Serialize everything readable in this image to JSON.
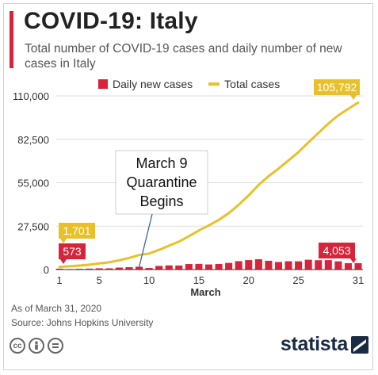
{
  "header": {
    "title": "COVID-19: Italy",
    "subtitle": "Total number of COVID-19 cases and daily number of new cases in Italy"
  },
  "legend": {
    "bars": "Daily new cases",
    "line": "Total cases"
  },
  "colors": {
    "accent": "#d8243a",
    "bars": "#d8243a",
    "line": "#e8c12a",
    "grid": "#dddddd",
    "brand": "#1a2b44"
  },
  "annotation": {
    "line1": "March 9",
    "line2": "Quarantine",
    "line3": "Begins",
    "day": 9
  },
  "callouts": {
    "total_start": "1,701",
    "daily_start": "573",
    "total_end": "105,792",
    "daily_end": "4,053"
  },
  "footer": {
    "as_of": "As of March 31, 2020",
    "source": "Source: Johns Hopkins University",
    "brand": "statista",
    "license_icons": [
      "cc-icon",
      "person-icon",
      "equal-icon"
    ]
  },
  "chart_data": {
    "type": "bar",
    "xlabel": "March",
    "ylabel": "",
    "ylim": [
      0,
      110000
    ],
    "yticks": [
      "0",
      "27,500",
      "55,000",
      "82,500",
      "110,000"
    ],
    "ytick_values": [
      0,
      27500,
      55000,
      82500,
      110000
    ],
    "xticks": [
      "1",
      "5",
      "10",
      "15",
      "20",
      "25",
      "31"
    ],
    "xtick_values": [
      1,
      5,
      10,
      15,
      20,
      25,
      31
    ],
    "x": [
      1,
      2,
      3,
      4,
      5,
      6,
      7,
      8,
      9,
      10,
      11,
      12,
      13,
      14,
      15,
      16,
      17,
      18,
      19,
      20,
      21,
      22,
      23,
      24,
      25,
      26,
      27,
      28,
      29,
      30,
      31
    ],
    "series": [
      {
        "name": "Daily new cases",
        "kind": "bar",
        "values": [
          573,
          335,
          466,
          587,
          769,
          778,
          1247,
          1492,
          1797,
          977,
          2313,
          2651,
          2547,
          3497,
          3590,
          3233,
          3526,
          4207,
          5322,
          5986,
          6557,
          5560,
          4789,
          5249,
          5210,
          6203,
          5909,
          5974,
          5217,
          4050,
          4053
        ]
      },
      {
        "name": "Total cases",
        "kind": "line",
        "values": [
          1701,
          2036,
          2502,
          3089,
          3858,
          4636,
          5883,
          7375,
          9172,
          10149,
          12462,
          15113,
          17660,
          21157,
          24747,
          27980,
          31506,
          35713,
          41035,
          47021,
          53578,
          59138,
          63927,
          69176,
          74386,
          80589,
          86498,
          92472,
          97689,
          101739,
          105792
        ]
      }
    ]
  }
}
